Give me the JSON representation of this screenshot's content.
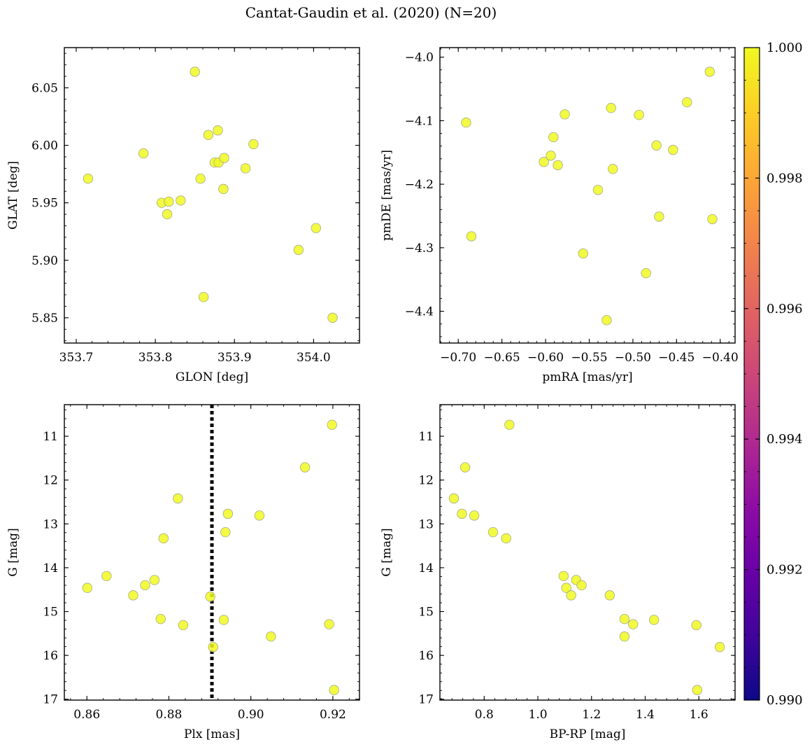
{
  "figure": {
    "title": "Cantat-Gaudin et al. (2020) (N=20)"
  },
  "colorbar": {
    "colormap": "plasma",
    "range": [
      0.99,
      1.0
    ],
    "ticks": [
      0.99,
      0.992,
      0.994,
      0.996,
      0.998,
      1.0
    ],
    "tick_labels": [
      "0.990",
      "0.992",
      "0.994",
      "0.996",
      "0.998",
      "1.000"
    ]
  },
  "style": {
    "marker_color": "#f0f921",
    "marker_edge": "#a9a98a",
    "axline_color": "#000000"
  },
  "chart_data": [
    {
      "type": "scatter",
      "xlabel": "GLON [deg]",
      "ylabel": "GLAT [deg]",
      "xlim": [
        353.685,
        354.058
      ],
      "ylim": [
        5.828,
        6.085
      ],
      "xticks": [
        353.7,
        353.8,
        353.9,
        354.0
      ],
      "xtick_labels": [
        "353.7",
        "353.8",
        "353.9",
        "354.0"
      ],
      "yticks": [
        5.85,
        5.9,
        5.95,
        6.0,
        6.05
      ],
      "ytick_labels": [
        "5.85",
        "5.90",
        "5.95",
        "6.00",
        "6.05"
      ],
      "y_inverted": false,
      "x": [
        353.715,
        353.785,
        353.85,
        353.808,
        353.817,
        353.815,
        353.832,
        353.857,
        353.867,
        353.879,
        353.875,
        353.88,
        353.887,
        353.886,
        353.914,
        353.924,
        353.861,
        353.981,
        354.003,
        354.024
      ],
      "y": [
        5.971,
        5.993,
        6.064,
        5.95,
        5.951,
        5.94,
        5.952,
        5.971,
        6.009,
        6.013,
        5.985,
        5.985,
        5.989,
        5.962,
        5.98,
        6.001,
        5.868,
        5.909,
        5.928,
        5.85
      ]
    },
    {
      "type": "scatter",
      "xlabel": "pmRA [mas/yr]",
      "ylabel": "pmDE [mas/yr]",
      "xlim": [
        -0.721,
        -0.383
      ],
      "ylim": [
        -4.45,
        -3.985
      ],
      "xticks": [
        -0.7,
        -0.65,
        -0.6,
        -0.55,
        -0.5,
        -0.45,
        -0.4
      ],
      "xtick_labels": [
        "−0.70",
        "−0.65",
        "−0.60",
        "−0.55",
        "−0.50",
        "−0.45",
        "−0.40"
      ],
      "yticks": [
        -4.4,
        -4.3,
        -4.2,
        -4.1,
        -4.0
      ],
      "ytick_labels": [
        "−4.4",
        "−4.3",
        "−4.2",
        "−4.1",
        "−4.0"
      ],
      "y_inverted": false,
      "x": [
        -0.691,
        -0.685,
        -0.602,
        -0.594,
        -0.591,
        -0.586,
        -0.578,
        -0.54,
        -0.525,
        -0.523,
        -0.557,
        -0.53,
        -0.493,
        -0.473,
        -0.47,
        -0.454,
        -0.438,
        -0.485,
        -0.412,
        -0.409
      ],
      "y": [
        -4.103,
        -4.282,
        -4.165,
        -4.155,
        -4.126,
        -4.17,
        -4.09,
        -4.209,
        -4.08,
        -4.176,
        -4.309,
        -4.414,
        -4.091,
        -4.139,
        -4.251,
        -4.146,
        -4.071,
        -4.34,
        -4.023,
        -4.255
      ]
    },
    {
      "type": "scatter",
      "xlabel": "Plx [mas]",
      "ylabel": "G [mag]",
      "xlim": [
        0.8545,
        0.9265
      ],
      "ylim": [
        17.02,
        10.28
      ],
      "xticks": [
        0.86,
        0.88,
        0.9,
        0.92
      ],
      "xtick_labels": [
        "0.86",
        "0.88",
        "0.90",
        "0.92"
      ],
      "yticks": [
        11,
        12,
        13,
        14,
        15,
        16,
        17
      ],
      "ytick_labels": [
        "11",
        "12",
        "13",
        "14",
        "15",
        "16",
        "17"
      ],
      "y_inverted": true,
      "vline": {
        "x": 0.8905,
        "style": "dotted"
      },
      "x": [
        0.9198,
        0.9132,
        0.8822,
        0.8944,
        0.9021,
        0.8938,
        0.8787,
        0.8648,
        0.8601,
        0.8765,
        0.8742,
        0.8713,
        0.8901,
        0.878,
        0.8835,
        0.8934,
        0.9191,
        0.8908,
        0.9049,
        0.9203
      ],
      "y": [
        10.74,
        11.71,
        12.42,
        12.77,
        12.81,
        13.19,
        13.33,
        14.19,
        14.46,
        14.28,
        14.4,
        14.63,
        14.66,
        15.17,
        15.31,
        15.19,
        15.29,
        15.81,
        15.57,
        16.79
      ]
    },
    {
      "type": "scatter",
      "xlabel": "BP-RP [mag]",
      "ylabel": "G [mag]",
      "xlim": [
        0.635,
        1.735
      ],
      "ylim": [
        17.02,
        10.28
      ],
      "xticks": [
        0.8,
        1.0,
        1.2,
        1.4,
        1.6
      ],
      "xtick_labels": [
        "0.8",
        "1.0",
        "1.2",
        "1.4",
        "1.6"
      ],
      "yticks": [
        11,
        12,
        13,
        14,
        15,
        16,
        17
      ],
      "ytick_labels": [
        "11",
        "12",
        "13",
        "14",
        "15",
        "16",
        "17"
      ],
      "y_inverted": true,
      "x": [
        0.894,
        0.729,
        0.687,
        0.717,
        0.763,
        0.833,
        0.882,
        1.096,
        1.106,
        1.143,
        1.163,
        1.124,
        1.268,
        1.323,
        1.355,
        1.433,
        1.591,
        1.323,
        1.678,
        1.594
      ],
      "y": [
        10.74,
        11.71,
        12.42,
        12.77,
        12.81,
        13.19,
        13.33,
        14.19,
        14.46,
        14.28,
        14.4,
        14.63,
        14.63,
        15.17,
        15.29,
        15.19,
        15.31,
        15.57,
        15.81,
        16.79
      ]
    }
  ]
}
